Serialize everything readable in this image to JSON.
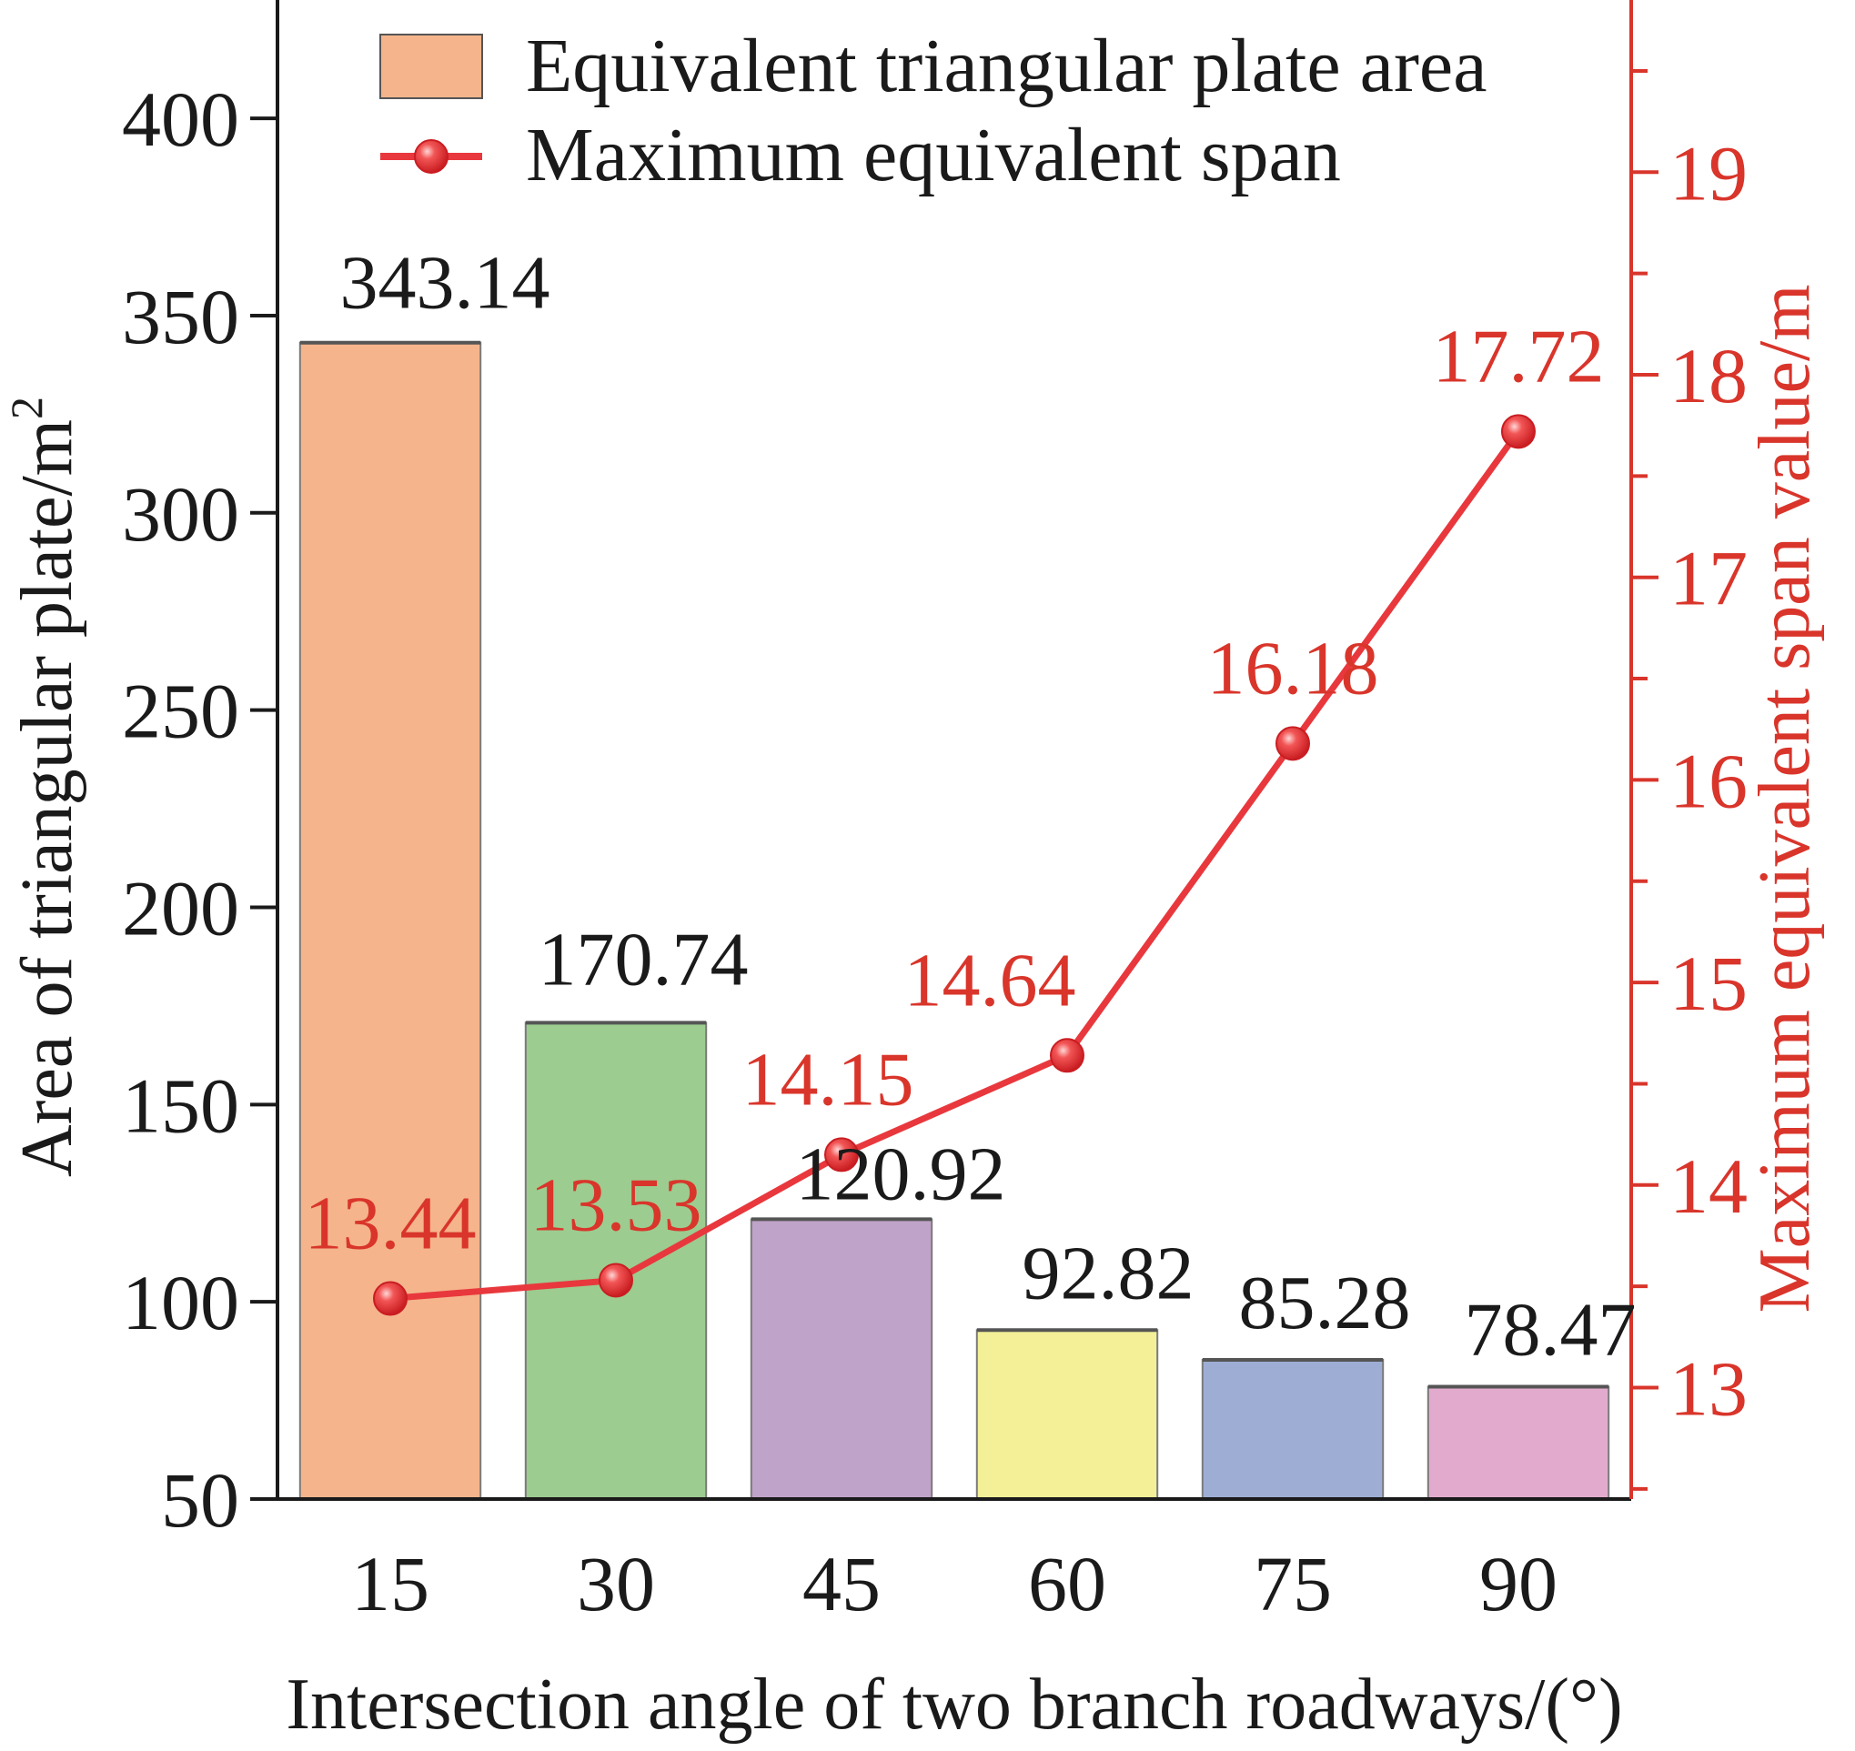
{
  "chart_data": {
    "type": "bar",
    "xlabel": "Intersection angle of two branch roadways/(°)",
    "ylabel": "Area of triangular plate/m",
    "ylabel_superscript": "2",
    "y2label": "Maximum equivalent span value/m",
    "categories": [
      "15",
      "30",
      "45",
      "60",
      "75",
      "90"
    ],
    "ylim": [
      50,
      430
    ],
    "yticks": [
      "50",
      "100",
      "150",
      "200",
      "250",
      "300",
      "350",
      "400"
    ],
    "y2lim": [
      12.45,
      19.85
    ],
    "y2ticks": [
      "13",
      "14",
      "15",
      "16",
      "17",
      "18",
      "19"
    ],
    "grid": false,
    "legend_position": "top",
    "series": [
      {
        "name": "Equivalent triangular plate area",
        "kind": "bar",
        "axis": "left",
        "values": [
          343.14,
          170.74,
          120.92,
          92.82,
          85.28,
          78.47
        ],
        "labels": [
          "343.14",
          "170.74",
          "120.92",
          "92.82",
          "85.28",
          "78.47"
        ],
        "colors": [
          "#f5b48c",
          "#9ccc90",
          "#c0a3c8",
          "#f3f097",
          "#9dadd4",
          "#e2abcd"
        ]
      },
      {
        "name": "Maximum equivalent span",
        "kind": "line",
        "axis": "right",
        "values": [
          13.44,
          13.53,
          14.15,
          14.64,
          16.18,
          17.72
        ],
        "labels": [
          "13.44",
          "13.53",
          "14.15",
          "14.64",
          "16.18",
          "17.72"
        ],
        "color": "#e8383d"
      }
    ]
  }
}
